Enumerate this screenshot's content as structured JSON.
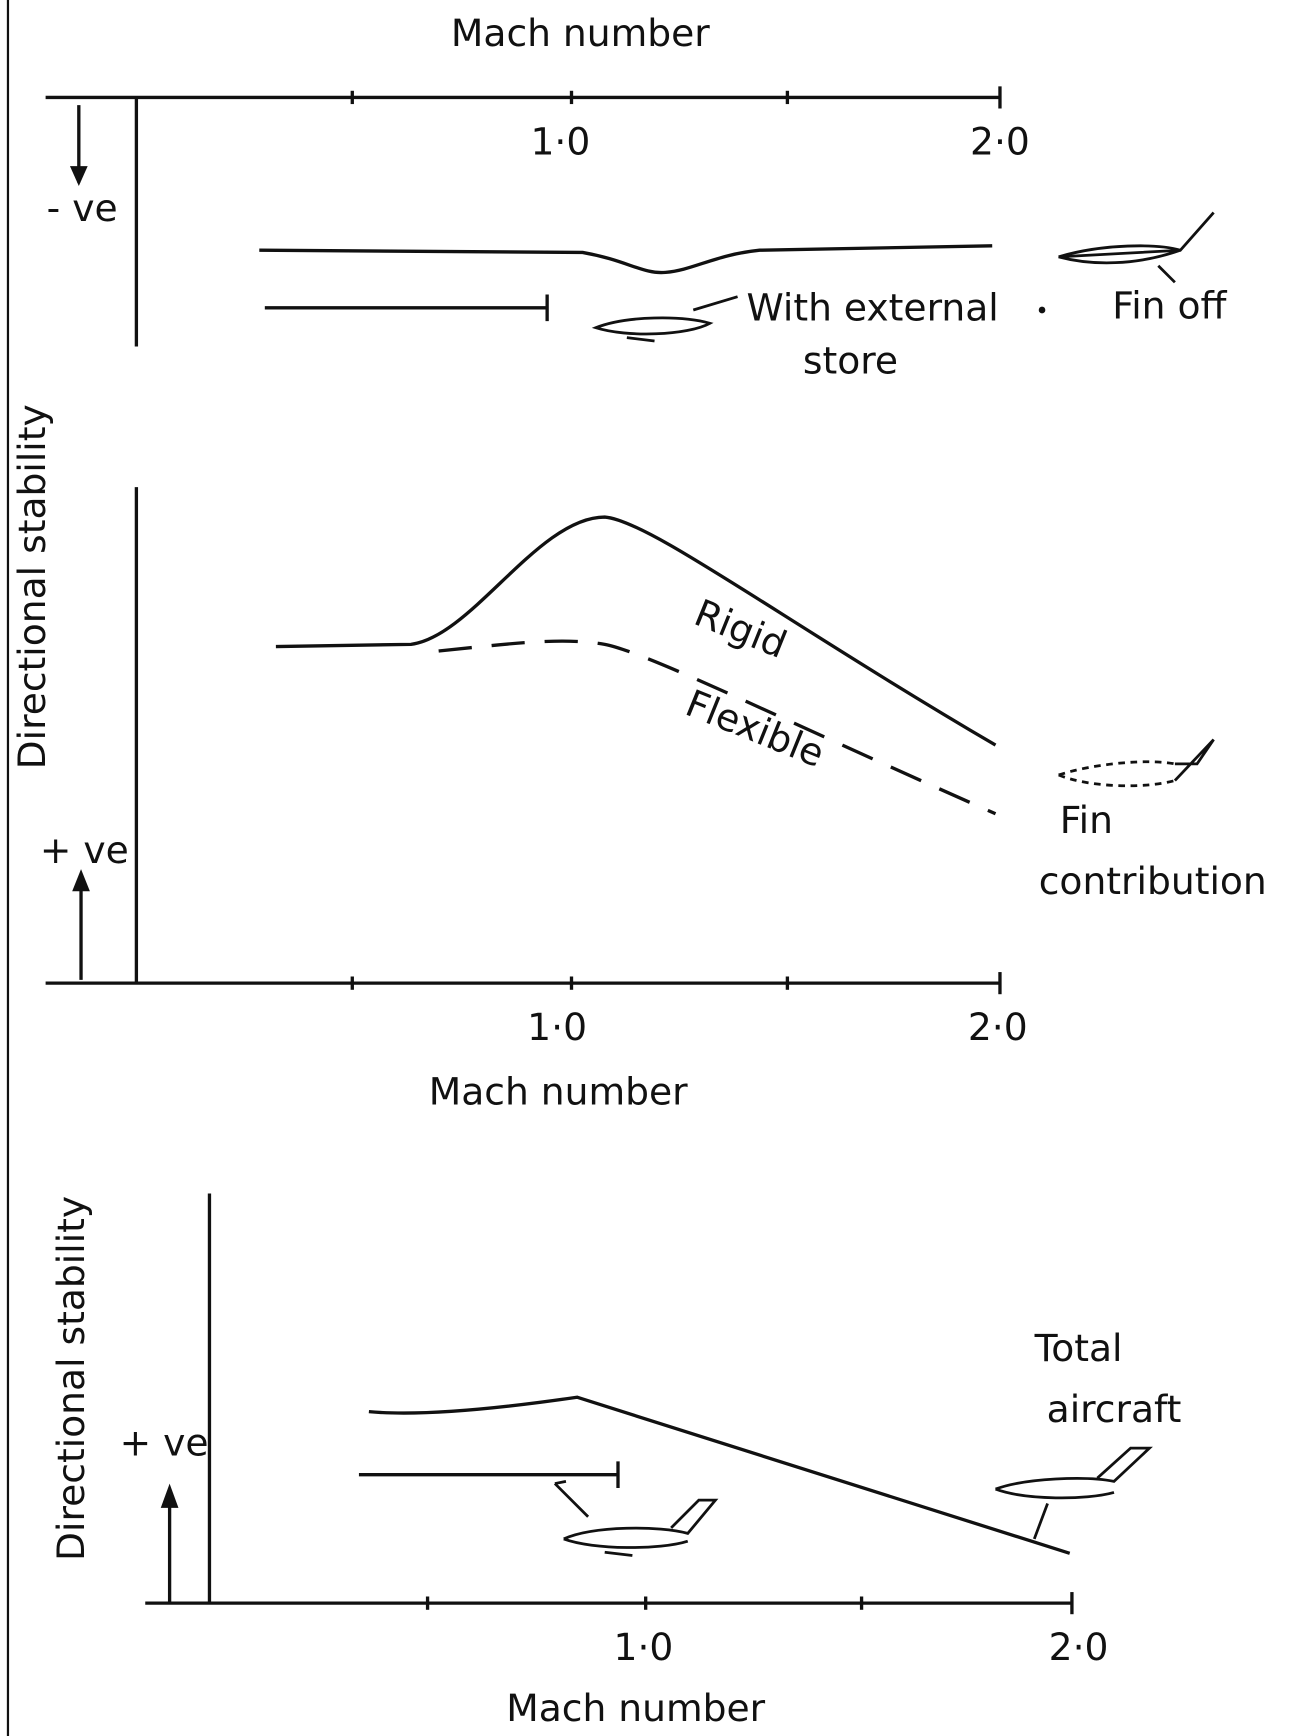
{
  "top_axis": {
    "title": "Mach number",
    "ticks": [
      "1·0",
      "2·0"
    ]
  },
  "panel_1": {
    "y_label": "Directional stability",
    "negative": "- ve",
    "positive": "+ ve",
    "external_store": [
      "With external",
      "store"
    ],
    "fin_off": "Fin off",
    "rigid": "Rigid",
    "flexible": "Flexible",
    "fin_contribution": [
      "Fin",
      "contribution"
    ],
    "x_title": "Mach number",
    "ticks": [
      "1·0",
      "2·0"
    ]
  },
  "panel_2": {
    "y_label": "Directional stability",
    "positive": "+ ve",
    "total_aircraft": [
      "Total",
      "aircraft"
    ],
    "x_title": "Mach number",
    "ticks": [
      "1·0",
      "2·0"
    ]
  }
}
